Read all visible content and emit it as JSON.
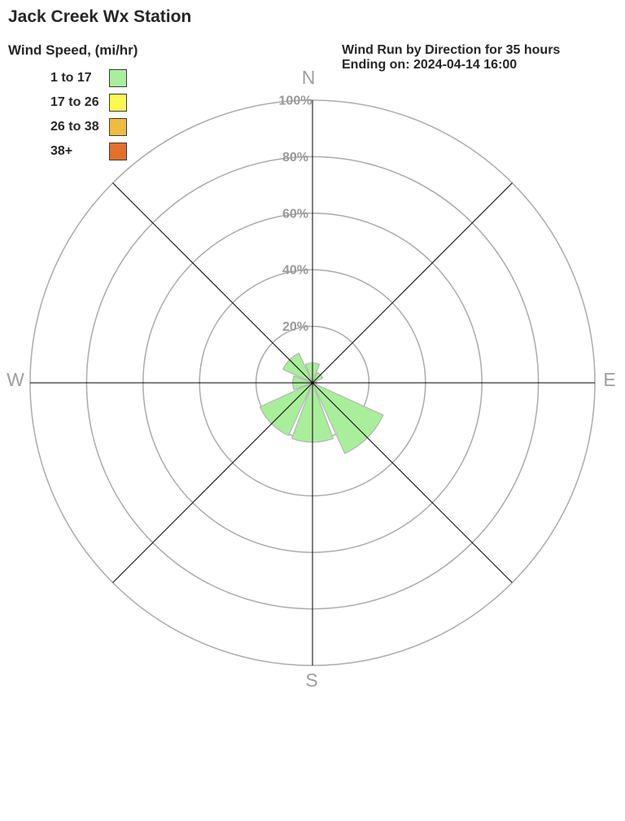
{
  "title": "Jack Creek Wx Station",
  "legend": {
    "title": "Wind Speed, (mi/hr)",
    "items": [
      {
        "label": "1 to 17",
        "color": "#a9ee9b"
      },
      {
        "label": "17 to 26",
        "color": "#faf851"
      },
      {
        "label": "26 to 38",
        "color": "#efbc3f"
      },
      {
        "label": "38+",
        "color": "#e4702d"
      }
    ]
  },
  "header_right": {
    "line1": "Wind Run by Direction for 35 hours",
    "line2": "Ending on: 2024-04-14 16:00"
  },
  "chart_data": {
    "type": "wind-rose",
    "title": "Wind Run by Direction for 35 hours",
    "subtitle": "Ending on: 2024-04-14 16:00",
    "units": "percent of wind run",
    "directions": [
      "N",
      "NE",
      "E",
      "SE",
      "S",
      "SW",
      "W",
      "NW"
    ],
    "series": [
      {
        "name": "1 to 17",
        "color": "#a9ee9b",
        "values": [
          7,
          4,
          1.5,
          27.5,
          21,
          20.5,
          7,
          11.5
        ]
      },
      {
        "name": "17 to 26",
        "color": "#faf851",
        "values": [
          0,
          0,
          0,
          0,
          0,
          0,
          0,
          0
        ]
      },
      {
        "name": "26 to 38",
        "color": "#efbc3f",
        "values": [
          0,
          0,
          0,
          0,
          0,
          0,
          0,
          0
        ]
      },
      {
        "name": "38+",
        "color": "#e4702d",
        "values": [
          0,
          0,
          0,
          0,
          0,
          0,
          0,
          0
        ]
      }
    ],
    "ring_values": [
      20,
      40,
      60,
      80,
      100
    ],
    "ring_labels": [
      "20%",
      "40%",
      "60%",
      "80%",
      "100%"
    ],
    "axis_max_percent": 100,
    "compass_labels": {
      "n": "N",
      "e": "E",
      "s": "S",
      "w": "W"
    },
    "grid_on": true,
    "legend_position": "top-left",
    "colors": {
      "grid": "#ababab",
      "spoke": "#000000",
      "ring_label": "#9a9a9a",
      "compass_label": "#9e9e9e",
      "petal_outline": "#b5b5b5"
    }
  }
}
